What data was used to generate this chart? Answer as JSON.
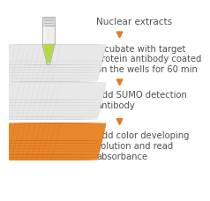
{
  "background_color": "#ffffff",
  "steps": [
    "Nuclear extracts",
    "Incubate with target\nprotein antibody coated\non the wells for 60 min",
    "Add SUMO detection\nantibody",
    "Add color developing\nsolution and read\nabsorbance"
  ],
  "arrow_color": "#E87722",
  "text_color": "#505050",
  "font_size": 7.2,
  "tube_liquid_color": "#b5d84a",
  "plate_well_color_orange": "#E8872A",
  "plate_well_color_empty": "#e8e8e8",
  "plate_well_edge_empty": "#cccccc",
  "plate_well_edge_orange": "#cc6010"
}
